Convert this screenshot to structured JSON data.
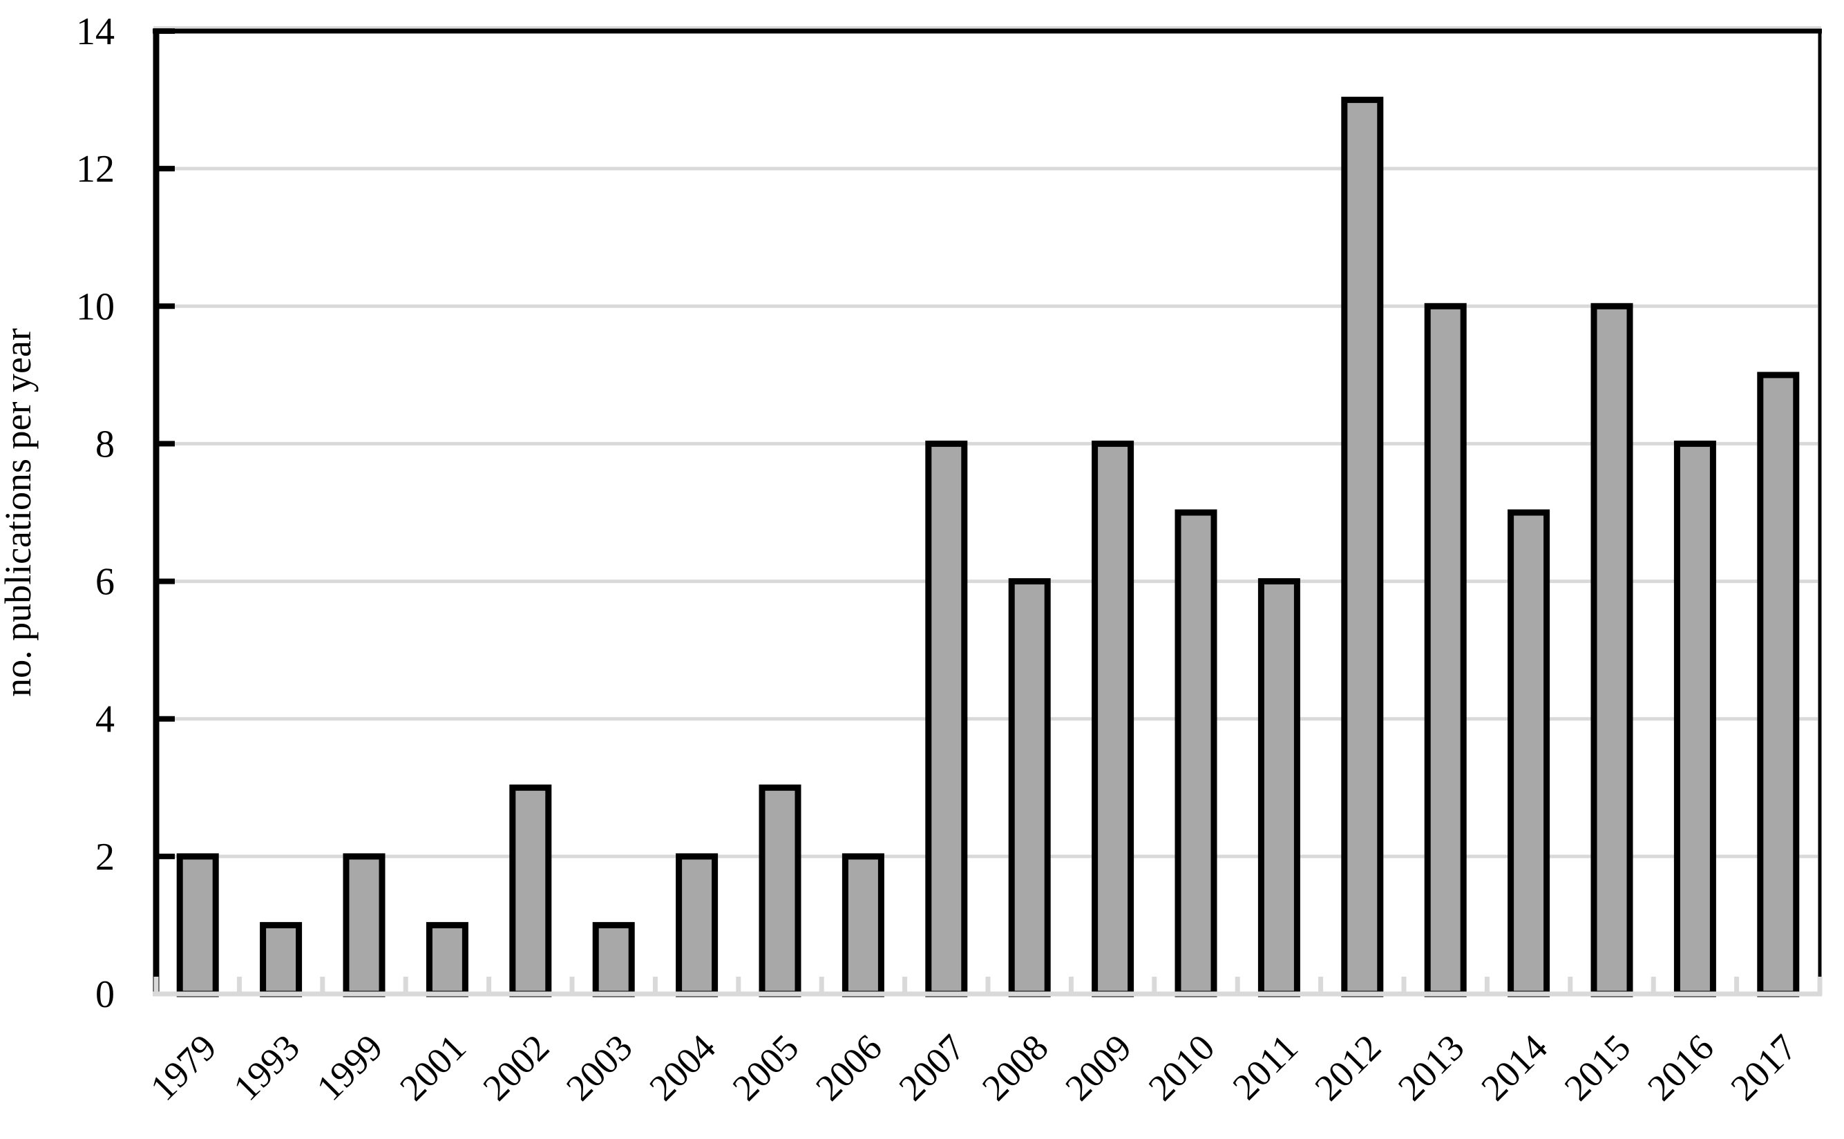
{
  "chart_data": {
    "type": "bar",
    "title": "",
    "xlabel": "",
    "ylabel": "no. publications per year",
    "categories": [
      "1979",
      "1993",
      "1999",
      "2001",
      "2002",
      "2003",
      "2004",
      "2005",
      "2006",
      "2007",
      "2008",
      "2009",
      "2010",
      "2011",
      "2012",
      "2013",
      "2014",
      "2015",
      "2016",
      "2017"
    ],
    "values": [
      2,
      1,
      2,
      1,
      3,
      1,
      2,
      3,
      2,
      8,
      6,
      8,
      7,
      6,
      13,
      10,
      7,
      10,
      8,
      9
    ],
    "ylim": [
      0,
      14
    ],
    "ytick_step": 2,
    "ytick_labels": [
      "0",
      "2",
      "4",
      "6",
      "8",
      "10",
      "12",
      "14"
    ],
    "grid": "horizontal",
    "legend": "none",
    "colors": {
      "bar_fill": "#A8A8A8",
      "bar_stroke": "#000000",
      "gridline": "#D9D9D9",
      "x_axis": "#D9D9D9",
      "y_axis": "#000000",
      "plot_border": "#000000",
      "background": "#FFFFFF",
      "text": "#000000"
    }
  }
}
